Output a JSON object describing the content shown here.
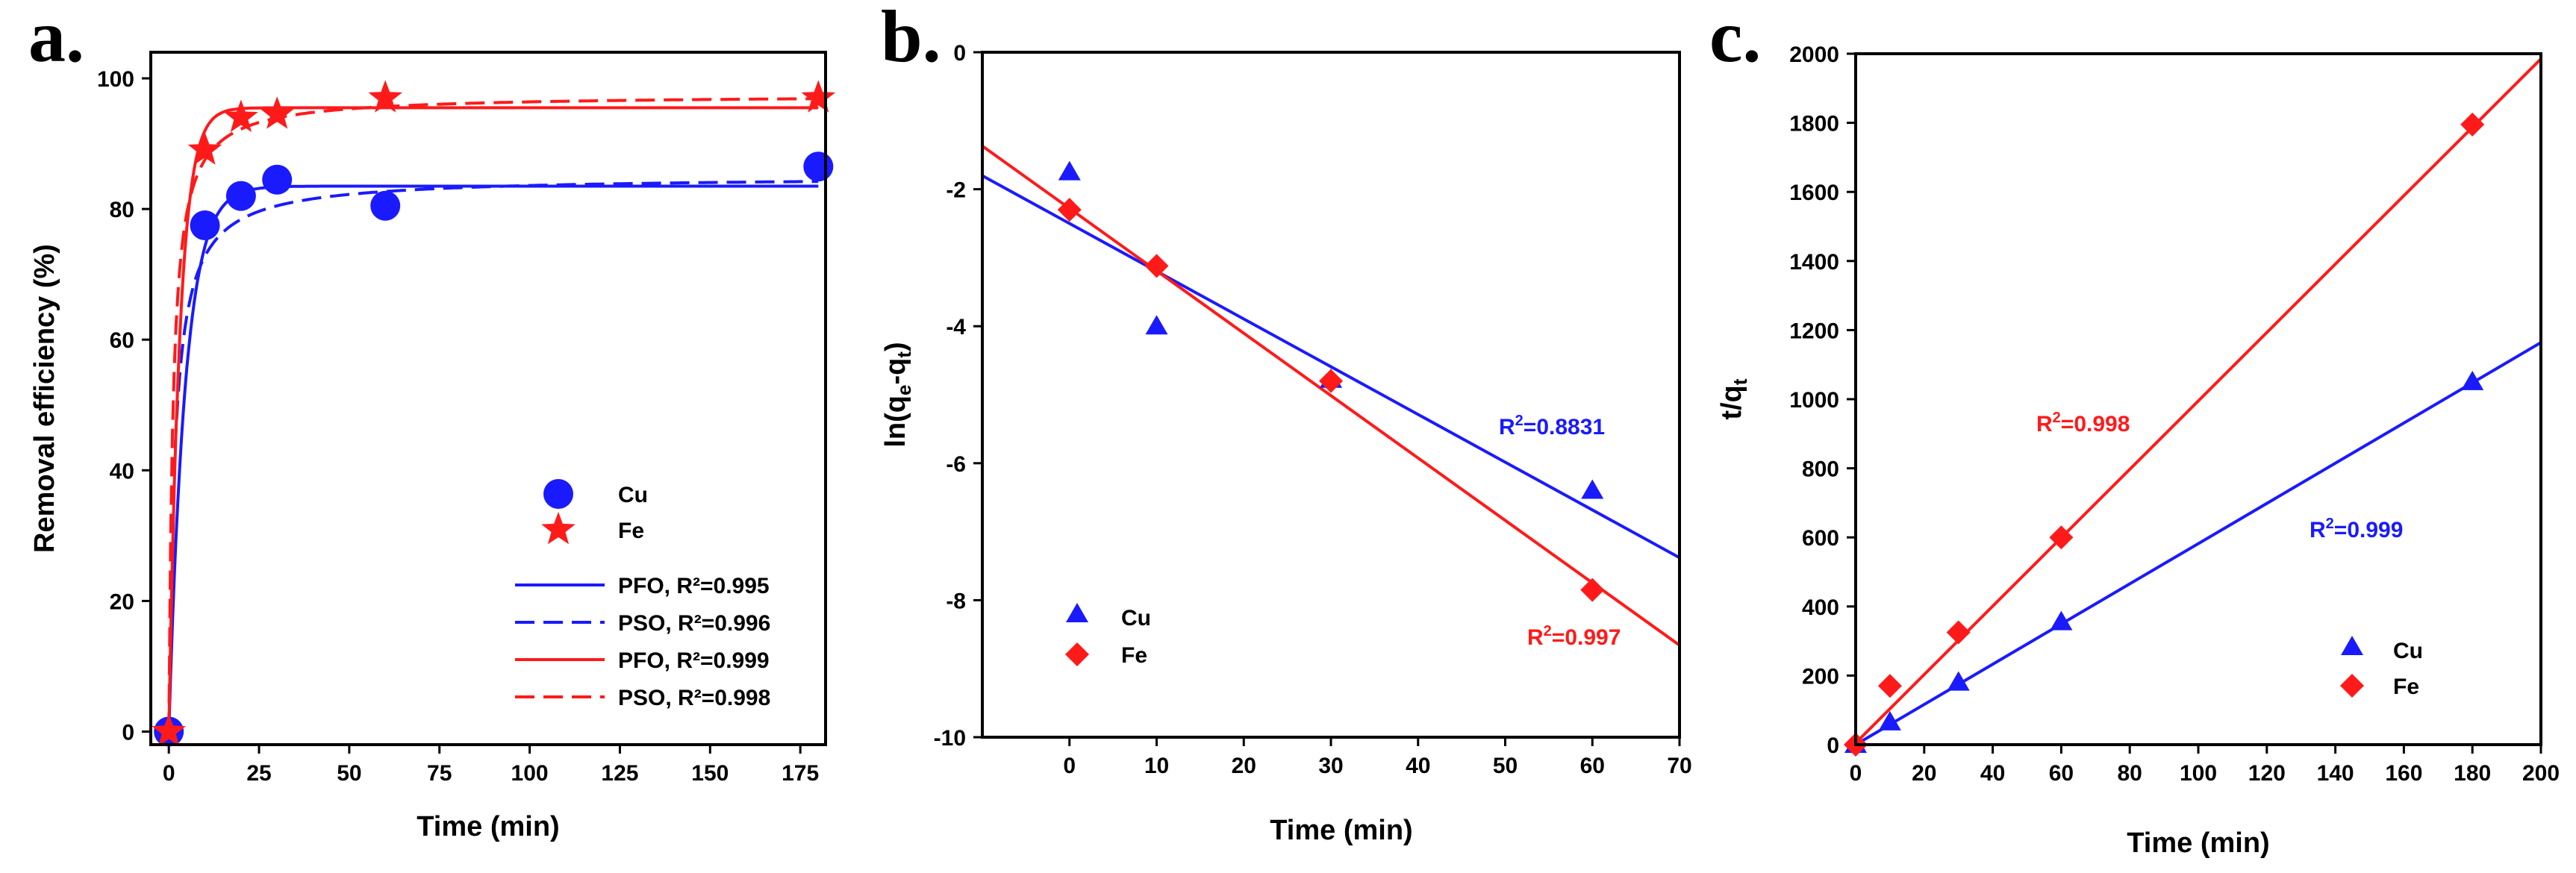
{
  "colors": {
    "blue": "#1a1aff",
    "red": "#ff1a1a",
    "black": "#000000"
  },
  "panel_labels": [
    "a.",
    "b.",
    "c."
  ],
  "chart_data": [
    {
      "type": "scatter",
      "title": "",
      "xlabel": "Time (min)",
      "ylabel": "Removal efficiency (%)",
      "xlim": [
        -5,
        182
      ],
      "ylim": [
        -2,
        104
      ],
      "xticks": [
        0,
        25,
        50,
        75,
        100,
        125,
        150,
        175
      ],
      "yticks": [
        0,
        20,
        40,
        60,
        80,
        100
      ],
      "series": [
        {
          "name": "Cu",
          "marker": "circle",
          "color": "#1a1aff",
          "x": [
            0,
            10,
            20,
            30,
            60,
            180
          ],
          "y": [
            0,
            77.5,
            82,
            84.5,
            80.5,
            86.5
          ]
        },
        {
          "name": "Fe",
          "marker": "star",
          "color": "#ff1a1a",
          "x": [
            0,
            10,
            20,
            30,
            60,
            180
          ],
          "y": [
            0,
            89,
            94,
            94.5,
            97,
            97
          ]
        }
      ],
      "fits": [
        {
          "name": "PFO, R²=0.995",
          "kind": "pfo",
          "qe": 83.5,
          "k": 0.22,
          "color": "#1a1aff",
          "dash": false
        },
        {
          "name": "PSO, R²=0.996",
          "kind": "pso",
          "qe": 85,
          "k": 0.007,
          "color": "#1a1aff",
          "dash": true
        },
        {
          "name": "PFO, R²=0.999",
          "kind": "pfo",
          "qe": 95.5,
          "k": 0.33,
          "color": "#ff1a1a",
          "dash": false
        },
        {
          "name": "PSO, R²=0.998",
          "kind": "pso",
          "qe": 97.5,
          "k": 0.009,
          "color": "#ff1a1a",
          "dash": true
        }
      ],
      "legend_position": "bottom-right"
    },
    {
      "type": "scatter",
      "title": "",
      "xlabel": "Time (min)",
      "ylabel": "ln(qe-qt)",
      "xlim": [
        -10,
        70
      ],
      "ylim": [
        -10,
        0
      ],
      "xticks": [
        0,
        10,
        20,
        30,
        40,
        50,
        60,
        70
      ],
      "yticks": [
        0,
        -2,
        -4,
        -6,
        -8,
        -10
      ],
      "series": [
        {
          "name": "Cu",
          "marker": "triangle",
          "color": "#1a1aff",
          "x": [
            0,
            10,
            30,
            60
          ],
          "y": [
            -1.75,
            -4.0,
            -4.78,
            -6.4
          ]
        },
        {
          "name": "Fe",
          "marker": "diamond",
          "color": "#ff1a1a",
          "x": [
            0,
            10,
            30,
            60
          ],
          "y": [
            -2.3,
            -3.12,
            -4.8,
            -7.85
          ]
        }
      ],
      "fits": [
        {
          "name": "Cu fit",
          "slope": -0.0697,
          "intercept": -2.5,
          "color": "#1a1aff",
          "annotation": "R²=0.8831"
        },
        {
          "name": "Fe fit",
          "slope": -0.0911,
          "intercept": -2.28,
          "color": "#ff1a1a",
          "annotation": "R²=0.997"
        }
      ],
      "legend_position": "bottom-left"
    },
    {
      "type": "scatter",
      "title": "",
      "xlabel": "Time (min)",
      "ylabel": "t/qt",
      "xlim": [
        0,
        200
      ],
      "ylim": [
        0,
        2000
      ],
      "xticks": [
        0,
        20,
        40,
        60,
        80,
        100,
        120,
        140,
        160,
        180,
        200
      ],
      "yticks": [
        0,
        200,
        400,
        600,
        800,
        1000,
        1200,
        1400,
        1600,
        1800,
        2000
      ],
      "series": [
        {
          "name": "Cu",
          "marker": "triangle",
          "color": "#1a1aff",
          "x": [
            0,
            10,
            30,
            60,
            180
          ],
          "y": [
            0,
            65,
            180,
            355,
            1050
          ]
        },
        {
          "name": "Fe",
          "marker": "diamond",
          "color": "#ff1a1a",
          "x": [
            0,
            10,
            30,
            60,
            180
          ],
          "y": [
            0,
            170,
            325,
            600,
            1795
          ]
        }
      ],
      "fits": [
        {
          "name": "Cu fit",
          "slope": 5.82,
          "intercept": 0,
          "color": "#1a1aff",
          "annotation": "R²=0.999"
        },
        {
          "name": "Fe fit",
          "slope": 9.9,
          "intercept": 5,
          "color": "#ff1a1a",
          "annotation": "R²=0.998"
        }
      ],
      "legend_position": "bottom-right"
    }
  ]
}
